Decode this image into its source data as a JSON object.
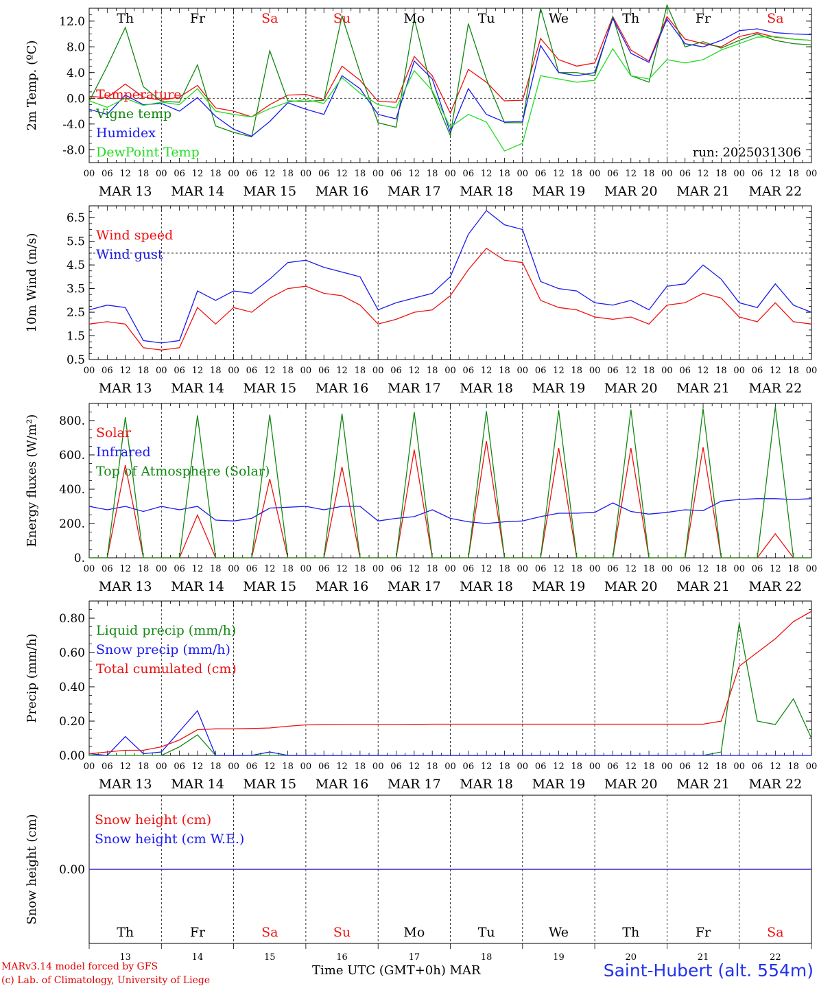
{
  "colors": {
    "red": "#ee1111",
    "blue": "#1a1aee",
    "green": "#118811",
    "lightgreen": "#22dd22"
  },
  "days": {
    "weekday_labels": [
      "Th",
      "Fr",
      "Sa",
      "Su",
      "Mo",
      "Tu",
      "We",
      "Th",
      "Fr",
      "Sa"
    ],
    "weekend_flags": [
      false,
      false,
      true,
      true,
      false,
      false,
      false,
      false,
      false,
      true
    ],
    "date_labels": [
      "MAR 13",
      "MAR 14",
      "MAR 15",
      "MAR 16",
      "MAR 17",
      "MAR 18",
      "MAR 19",
      "MAR 20",
      "MAR 21",
      "MAR 22"
    ],
    "day_numbers": [
      "13",
      "14",
      "15",
      "16",
      "17",
      "18",
      "19",
      "20",
      "21",
      "22"
    ],
    "hour_ticks": [
      "00",
      "06",
      "12",
      "18"
    ],
    "final_tick": "00"
  },
  "chart_data": [
    {
      "type": "line",
      "ylabel": "2m Temp. (ºC)",
      "ylim": [
        -10,
        14
      ],
      "yticks": [
        "-8.0",
        "-4.0",
        "0.0",
        "4.0",
        "8.0",
        "12.0"
      ],
      "ytick_values": [
        -8,
        -4,
        0,
        4,
        8,
        12
      ],
      "ref_line": 0,
      "annotation": "run: 2025031306",
      "x_hours": [
        0,
        6,
        12,
        18,
        24,
        30,
        36,
        42,
        48,
        54,
        60,
        66,
        72,
        78,
        84,
        90,
        96,
        102,
        108,
        114,
        120,
        126,
        132,
        138,
        144,
        150,
        156,
        162,
        168,
        174,
        180,
        186,
        192,
        198,
        204,
        210,
        216,
        222,
        228,
        234,
        240
      ],
      "series": [
        {
          "name": "Temperature",
          "color": "red",
          "values": [
            0.3,
            0.1,
            2.2,
            0.2,
            -0.3,
            0.2,
            2.0,
            -1.5,
            -2.0,
            -2.9,
            -1.0,
            0.5,
            0.6,
            -0.2,
            5.0,
            2.8,
            -0.5,
            -0.6,
            6.5,
            3.5,
            -2.3,
            4.5,
            2.5,
            -0.4,
            -0.3,
            9.3,
            6.0,
            5.0,
            5.5,
            12.7,
            7.5,
            5.8,
            12.7,
            9.2,
            8.5,
            8.0,
            9.6,
            10.2,
            9.5,
            9.2,
            9.0
          ]
        },
        {
          "name": "Vigne temp",
          "color": "green",
          "values": [
            -0.5,
            5.0,
            11.0,
            1.8,
            -0.5,
            -0.6,
            5.2,
            -4.3,
            -5.3,
            -6.0,
            7.4,
            -0.4,
            -0.5,
            -0.3,
            12.8,
            4.0,
            -3.8,
            -4.5,
            12.4,
            1.0,
            -5.8,
            11.6,
            3.0,
            -3.8,
            -3.8,
            14.0,
            4.0,
            4.0,
            3.5,
            12.7,
            3.5,
            2.5,
            14.5,
            8.0,
            8.8,
            7.8,
            9.0,
            10.0,
            9.0,
            8.5,
            8.3
          ]
        },
        {
          "name": "Humidex",
          "color": "blue",
          "values": [
            -1.7,
            -2.5,
            0.5,
            -1.0,
            -0.8,
            -2.0,
            0.1,
            -2.8,
            -4.8,
            -5.9,
            -3.6,
            -0.7,
            -1.7,
            -2.5,
            3.5,
            1.5,
            -2.5,
            -3.2,
            5.8,
            3.0,
            -5.3,
            1.5,
            -2.5,
            -3.7,
            -3.6,
            8.2,
            4.0,
            3.5,
            4.0,
            12.4,
            7.0,
            5.6,
            12.3,
            8.5,
            8.0,
            9.0,
            10.5,
            10.8,
            10.2,
            10.0,
            9.9
          ]
        },
        {
          "name": "DewPoint Temp",
          "color": "lightgreen",
          "values": [
            -0.4,
            -1.4,
            0.0,
            -1.1,
            -0.6,
            -1.0,
            1.5,
            -2.0,
            -2.5,
            -2.9,
            -1.6,
            -0.6,
            -0.2,
            -0.8,
            3.2,
            0.8,
            -1.0,
            -1.5,
            4.3,
            1.2,
            -4.5,
            -2.5,
            -3.7,
            -8.2,
            -7.0,
            3.5,
            3.0,
            2.5,
            2.8,
            7.7,
            3.5,
            3.0,
            6.0,
            5.5,
            6.0,
            7.5,
            8.5,
            9.5,
            9.6,
            9.2,
            9.0
          ]
        }
      ]
    },
    {
      "type": "line",
      "ylabel": "10m Wind (m/s)",
      "ylim": [
        0.5,
        7.0
      ],
      "yticks": [
        "0.5",
        "1.5",
        "2.5",
        "3.5",
        "4.5",
        "5.5",
        "6.5"
      ],
      "ytick_values": [
        0.5,
        1.5,
        2.5,
        3.5,
        4.5,
        5.5,
        6.5
      ],
      "ref_line": 5.0,
      "annotation": "",
      "x_hours": [
        0,
        6,
        12,
        18,
        24,
        30,
        36,
        42,
        48,
        54,
        60,
        66,
        72,
        78,
        84,
        90,
        96,
        102,
        108,
        114,
        120,
        126,
        132,
        138,
        144,
        150,
        156,
        162,
        168,
        174,
        180,
        186,
        192,
        198,
        204,
        210,
        216,
        222,
        228,
        234,
        240
      ],
      "series": [
        {
          "name": "Wind speed",
          "color": "red",
          "values": [
            2.0,
            2.1,
            2.0,
            1.0,
            0.9,
            1.0,
            2.7,
            2.0,
            2.7,
            2.5,
            3.1,
            3.5,
            3.6,
            3.3,
            3.2,
            2.8,
            2.0,
            2.2,
            2.5,
            2.6,
            3.2,
            4.3,
            5.2,
            4.7,
            4.6,
            3.0,
            2.7,
            2.6,
            2.3,
            2.2,
            2.3,
            2.0,
            2.8,
            2.9,
            3.3,
            3.1,
            2.3,
            2.1,
            2.9,
            2.1,
            2.0
          ]
        },
        {
          "name": "Wind gust",
          "color": "blue",
          "values": [
            2.6,
            2.8,
            2.7,
            1.3,
            1.2,
            1.3,
            3.4,
            3.0,
            3.4,
            3.3,
            3.9,
            4.6,
            4.7,
            4.4,
            4.2,
            4.0,
            2.6,
            2.9,
            3.1,
            3.3,
            4.0,
            5.8,
            6.8,
            6.2,
            6.0,
            3.8,
            3.5,
            3.4,
            2.9,
            2.8,
            3.0,
            2.6,
            3.6,
            3.7,
            4.5,
            3.9,
            2.9,
            2.7,
            3.7,
            2.8,
            2.5
          ]
        }
      ]
    },
    {
      "type": "line",
      "ylabel": "Energy fluxes (W/m²)",
      "ylim": [
        0,
        900
      ],
      "yticks": [
        "0.",
        "200.",
        "400.",
        "600.",
        "800."
      ],
      "ytick_values": [
        0,
        200,
        400,
        600,
        800
      ],
      "annotation": "",
      "x_hours": [
        0,
        6,
        12,
        18,
        24,
        30,
        36,
        42,
        48,
        54,
        60,
        66,
        72,
        78,
        84,
        90,
        96,
        102,
        108,
        114,
        120,
        126,
        132,
        138,
        144,
        150,
        156,
        162,
        168,
        174,
        180,
        186,
        192,
        198,
        204,
        210,
        216,
        222,
        228,
        234,
        240
      ],
      "series": [
        {
          "name": "Solar",
          "color": "red",
          "values": [
            0,
            0,
            540,
            0,
            0,
            0,
            250,
            0,
            0,
            0,
            460,
            0,
            0,
            0,
            530,
            0,
            0,
            0,
            630,
            0,
            0,
            0,
            680,
            0,
            0,
            0,
            640,
            0,
            0,
            0,
            640,
            0,
            0,
            0,
            645,
            0,
            0,
            0,
            140,
            0,
            0
          ]
        },
        {
          "name": "Infrared",
          "color": "blue",
          "values": [
            300,
            280,
            300,
            270,
            300,
            280,
            300,
            220,
            215,
            230,
            290,
            295,
            300,
            280,
            300,
            300,
            215,
            230,
            240,
            280,
            230,
            210,
            200,
            210,
            215,
            240,
            260,
            260,
            265,
            320,
            270,
            255,
            265,
            280,
            275,
            330,
            340,
            345,
            345,
            340,
            345
          ]
        },
        {
          "name": "Top of Atmosphere (Solar)",
          "color": "green",
          "values": [
            0,
            0,
            820,
            0,
            0,
            0,
            830,
            0,
            0,
            0,
            835,
            0,
            0,
            0,
            840,
            0,
            0,
            0,
            850,
            0,
            0,
            0,
            855,
            0,
            0,
            0,
            860,
            0,
            0,
            0,
            865,
            0,
            0,
            0,
            870,
            0,
            0,
            0,
            880,
            0,
            0
          ]
        }
      ]
    },
    {
      "type": "line",
      "ylabel": "Precip (mm/h)",
      "ylim": [
        0,
        0.9
      ],
      "yticks": [
        "0.00",
        "0.20",
        "0.40",
        "0.60",
        "0.80"
      ],
      "ytick_values": [
        0,
        0.2,
        0.4,
        0.6,
        0.8
      ],
      "annotation": "",
      "x_hours": [
        0,
        6,
        12,
        18,
        24,
        30,
        36,
        42,
        48,
        54,
        60,
        66,
        72,
        78,
        84,
        90,
        96,
        102,
        108,
        114,
        120,
        126,
        132,
        138,
        144,
        150,
        156,
        162,
        168,
        174,
        180,
        186,
        192,
        198,
        204,
        210,
        216,
        222,
        228,
        234,
        240
      ],
      "series": [
        {
          "name": "Liquid precip (mm/h)",
          "color": "green",
          "values": [
            0,
            0,
            0,
            0,
            0,
            0.05,
            0.12,
            0,
            0,
            0,
            0,
            0,
            0,
            0,
            0,
            0,
            0,
            0,
            0,
            0,
            0,
            0,
            0,
            0,
            0,
            0,
            0,
            0,
            0,
            0,
            0,
            0,
            0,
            0,
            0,
            0.02,
            0.77,
            0.2,
            0.18,
            0.33,
            0.1
          ]
        },
        {
          "name": "Snow precip (mm/h)",
          "color": "blue",
          "values": [
            0.01,
            0,
            0.11,
            0.01,
            0.02,
            0.14,
            0.26,
            0,
            0,
            0,
            0.02,
            0,
            0,
            0,
            0,
            0,
            0,
            0,
            0,
            0,
            0,
            0,
            0,
            0,
            0,
            0,
            0,
            0,
            0,
            0,
            0,
            0,
            0,
            0,
            0,
            0,
            0,
            0,
            0,
            0,
            0
          ]
        },
        {
          "name": "Total cumulated (cm)",
          "color": "red",
          "values": [
            0.01,
            0.02,
            0.03,
            0.03,
            0.05,
            0.09,
            0.15,
            0.155,
            0.155,
            0.157,
            0.16,
            0.17,
            0.178,
            0.179,
            0.18,
            0.18,
            0.18,
            0.18,
            0.181,
            0.182,
            0.182,
            0.182,
            0.182,
            0.182,
            0.182,
            0.182,
            0.182,
            0.182,
            0.182,
            0.182,
            0.182,
            0.182,
            0.182,
            0.182,
            0.182,
            0.2,
            0.52,
            0.6,
            0.68,
            0.78,
            0.84
          ]
        }
      ]
    },
    {
      "type": "line",
      "ylabel": "Snow height (cm)",
      "ylim": [
        -1,
        1
      ],
      "yticks": [
        "0.00"
      ],
      "ytick_values": [
        0
      ],
      "annotation": "",
      "x_hours": [
        0,
        240
      ],
      "series": [
        {
          "name": "Snow height (cm)",
          "color": "red",
          "values": [
            0,
            0
          ]
        },
        {
          "name": "Snow height (cm W.E.)",
          "color": "blue",
          "values": [
            0,
            0
          ]
        }
      ]
    }
  ],
  "footer": {
    "credit_line1": "MARv3.14 model forced by GFS",
    "credit_line2": "(c) Lab. of Climatology, University of Liege",
    "time_axis": "Time UTC (GMT+0h) MAR",
    "station": "Saint-Hubert (alt. 554m)"
  }
}
